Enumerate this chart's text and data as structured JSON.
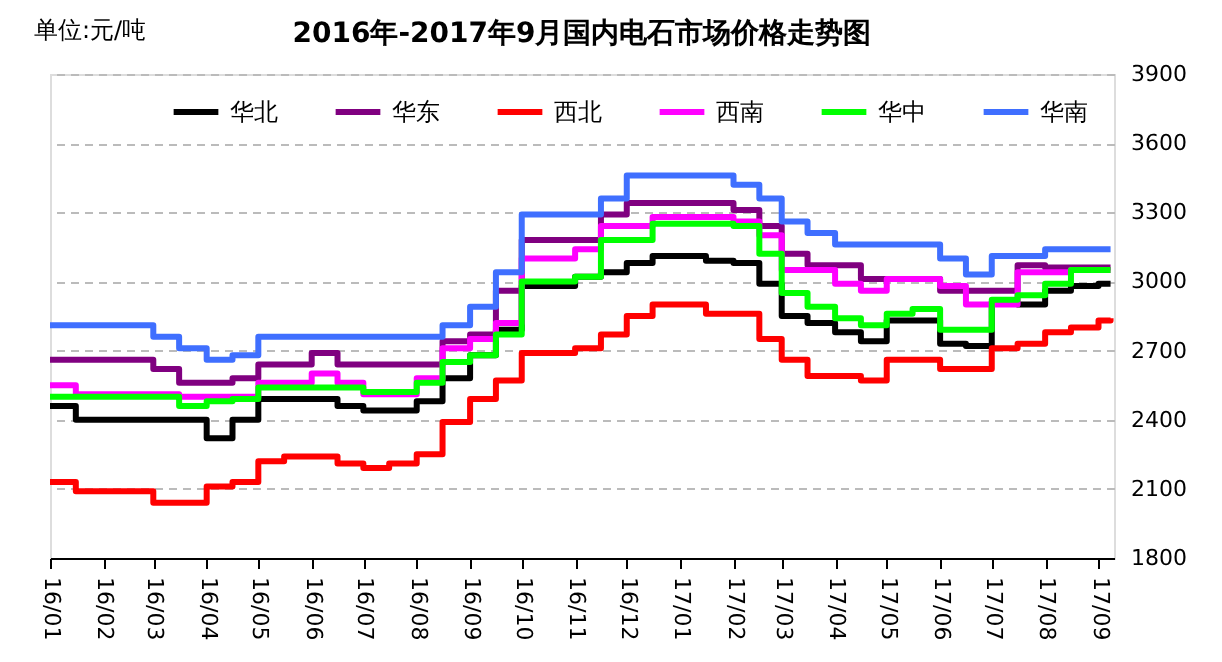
{
  "chart_data": {
    "type": "step",
    "title": "2016年-2017年9月国内电石市场价格走势图",
    "annotations": [
      "单位:元/吨"
    ],
    "x": [
      "2016-01-01",
      "2016-01-16",
      "2016-02-01",
      "2016-02-16",
      "2016-03-01",
      "2016-03-16",
      "2016-04-01",
      "2016-04-16",
      "2016-05-01",
      "2016-05-16",
      "2016-06-01",
      "2016-06-16",
      "2016-07-01",
      "2016-07-16",
      "2016-08-01",
      "2016-08-16",
      "2016-09-01",
      "2016-09-16",
      "2016-10-01",
      "2016-10-16",
      "2016-11-01",
      "2016-11-16",
      "2016-12-01",
      "2016-12-16",
      "2017-01-01",
      "2017-01-16",
      "2017-02-01",
      "2017-02-16",
      "2017-03-01",
      "2017-03-16",
      "2017-04-01",
      "2017-04-16",
      "2017-05-01",
      "2017-05-16",
      "2017-06-01",
      "2017-06-16",
      "2017-07-01",
      "2017-07-16",
      "2017-08-01",
      "2017-08-16",
      "2017-09-01",
      "2017-09-08"
    ],
    "series": [
      {
        "name": "华北",
        "color": "#000000",
        "values": [
          2460,
          2400,
          2400,
          2400,
          2400,
          2400,
          2320,
          2400,
          2490,
          2490,
          2490,
          2460,
          2440,
          2440,
          2480,
          2580,
          2680,
          2790,
          2980,
          2980,
          3020,
          3040,
          3080,
          3110,
          3110,
          3090,
          3080,
          2990,
          2850,
          2820,
          2780,
          2740,
          2830,
          2830,
          2730,
          2720,
          2910,
          2900,
          2960,
          2980,
          2990,
          2990
        ]
      },
      {
        "name": "华东",
        "color": "#800080",
        "values": [
          2660,
          2660,
          2660,
          2660,
          2620,
          2560,
          2560,
          2580,
          2640,
          2640,
          2690,
          2640,
          2640,
          2640,
          2640,
          2740,
          2770,
          2960,
          3180,
          3180,
          3180,
          3290,
          3340,
          3340,
          3340,
          3340,
          3310,
          3240,
          3120,
          3070,
          3070,
          3010,
          3010,
          3010,
          2960,
          2960,
          2960,
          3070,
          3060,
          3060,
          3060,
          3060
        ]
      },
      {
        "name": "西北",
        "color": "#ff0000",
        "values": [
          2130,
          2090,
          2090,
          2090,
          2040,
          2040,
          2110,
          2130,
          2220,
          2240,
          2240,
          2210,
          2190,
          2210,
          2250,
          2390,
          2490,
          2570,
          2690,
          2690,
          2710,
          2770,
          2850,
          2900,
          2900,
          2860,
          2860,
          2750,
          2660,
          2590,
          2590,
          2570,
          2660,
          2660,
          2620,
          2620,
          2710,
          2730,
          2780,
          2800,
          2830,
          2840
        ]
      },
      {
        "name": "西南",
        "color": "#ff00ff",
        "values": [
          2550,
          2510,
          2510,
          2510,
          2510,
          2500,
          2500,
          2500,
          2560,
          2560,
          2600,
          2560,
          2510,
          2510,
          2580,
          2710,
          2750,
          2820,
          3100,
          3100,
          3140,
          3240,
          3240,
          3280,
          3280,
          3280,
          3260,
          3200,
          3050,
          3050,
          2990,
          2960,
          3010,
          3010,
          2980,
          2900,
          2900,
          3040,
          3040,
          3050,
          3050,
          3050
        ]
      },
      {
        "name": "华中",
        "color": "#00ff00",
        "values": [
          2500,
          2500,
          2500,
          2500,
          2500,
          2460,
          2480,
          2490,
          2540,
          2540,
          2540,
          2540,
          2520,
          2520,
          2560,
          2650,
          2680,
          2770,
          3000,
          3000,
          3020,
          3180,
          3180,
          3250,
          3250,
          3250,
          3240,
          3120,
          2950,
          2890,
          2840,
          2810,
          2860,
          2880,
          2790,
          2790,
          2920,
          2940,
          2990,
          3050,
          3050,
          3050
        ]
      },
      {
        "name": "华南",
        "color": "#3f6fff",
        "values": [
          2810,
          2810,
          2810,
          2810,
          2760,
          2710,
          2660,
          2680,
          2760,
          2760,
          2760,
          2760,
          2760,
          2760,
          2760,
          2810,
          2890,
          3040,
          3290,
          3290,
          3290,
          3360,
          3460,
          3460,
          3460,
          3460,
          3420,
          3360,
          3260,
          3210,
          3160,
          3160,
          3160,
          3160,
          3100,
          3030,
          3110,
          3110,
          3140,
          3140,
          3140,
          3140
        ]
      }
    ],
    "xlim": [
      "2016-01-01",
      "2017-09-10"
    ],
    "xticks": [
      {
        "value": "2016-01-01",
        "label": "16/01"
      },
      {
        "value": "2016-02-01",
        "label": "16/02"
      },
      {
        "value": "2016-03-01",
        "label": "16/03"
      },
      {
        "value": "2016-04-01",
        "label": "16/04"
      },
      {
        "value": "2016-05-01",
        "label": "16/05"
      },
      {
        "value": "2016-06-01",
        "label": "16/06"
      },
      {
        "value": "2016-07-01",
        "label": "16/07"
      },
      {
        "value": "2016-08-01",
        "label": "16/08"
      },
      {
        "value": "2016-09-01",
        "label": "16/09"
      },
      {
        "value": "2016-10-01",
        "label": "16/10"
      },
      {
        "value": "2016-11-01",
        "label": "16/11"
      },
      {
        "value": "2016-12-01",
        "label": "16/12"
      },
      {
        "value": "2017-01-01",
        "label": "17/01"
      },
      {
        "value": "2017-02-01",
        "label": "17/02"
      },
      {
        "value": "2017-03-01",
        "label": "17/03"
      },
      {
        "value": "2017-04-01",
        "label": "17/04"
      },
      {
        "value": "2017-05-01",
        "label": "17/05"
      },
      {
        "value": "2017-06-01",
        "label": "17/06"
      },
      {
        "value": "2017-07-01",
        "label": "17/07"
      },
      {
        "value": "2017-08-01",
        "label": "17/08"
      },
      {
        "value": "2017-09-01",
        "label": "17/09"
      }
    ],
    "ylim": [
      1800,
      3900
    ],
    "yticks": [
      1800,
      2100,
      2400,
      2700,
      3000,
      3300,
      3600,
      3900
    ],
    "grid": "y",
    "legend": "top",
    "line_style": "solid",
    "marker": "none"
  }
}
